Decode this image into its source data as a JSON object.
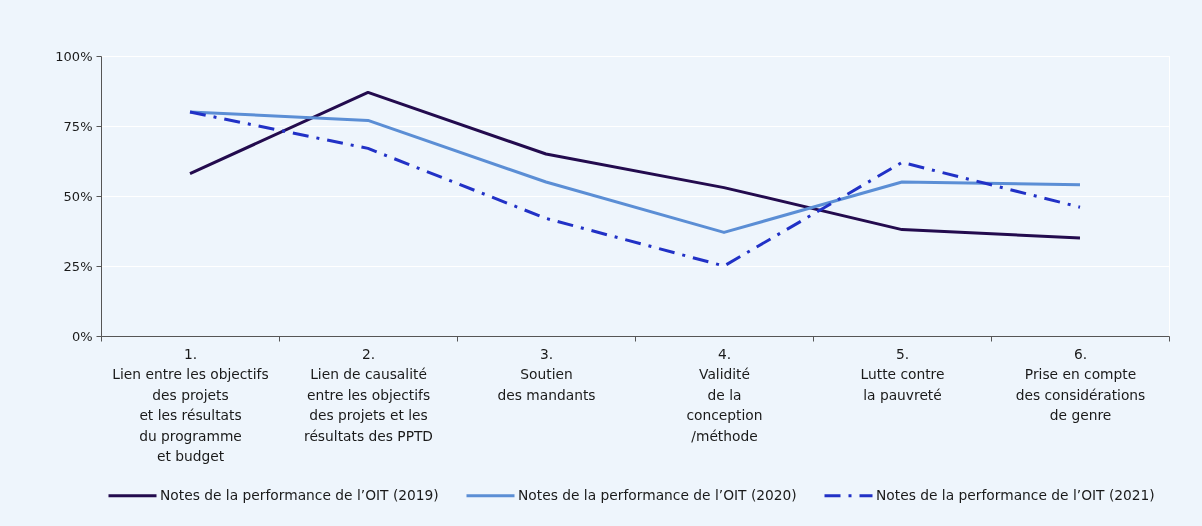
{
  "chart_data": {
    "type": "line",
    "categories": [
      "1.\nLien entre les objectifs\ndes projets\net les résultats\ndu programme\net budget",
      "2.\nLien de causalité\nentre les objectifs\ndes projets et les\nrésultats des PPTD",
      "3.\nSoutien\ndes mandants",
      "4.\nValidité\nde la\nconception\n/méthode",
      "5.\nLutte contre\nla pauvreté",
      "6.\nPrise en compte\ndes considérations\nde genre"
    ],
    "series": [
      {
        "name": "Notes de la performance de l’OIT (2019)",
        "color": "#230b4e",
        "values": [
          58,
          87,
          65,
          53,
          38,
          35
        ]
      },
      {
        "name": "Notes de la performance de l’OIT (2020)",
        "color": "#5b8ed5",
        "values": [
          80,
          77,
          55,
          37,
          55,
          54
        ]
      },
      {
        "name": "Notes de la performance de l’OIT (2021)",
        "color": "#2131c6",
        "values": [
          80,
          67,
          42,
          25,
          62,
          46
        ],
        "line_style": "dashdot"
      }
    ],
    "ylim": [
      0,
      100
    ],
    "yticks": [
      {
        "value": 0,
        "label": "0%"
      },
      {
        "value": 25,
        "label": "25%"
      },
      {
        "value": 50,
        "label": "50%"
      },
      {
        "value": 75,
        "label": "75%"
      },
      {
        "value": 100,
        "label": "100%"
      }
    ],
    "grid": "y",
    "legend": "bottom",
    "line_style": "solid"
  }
}
